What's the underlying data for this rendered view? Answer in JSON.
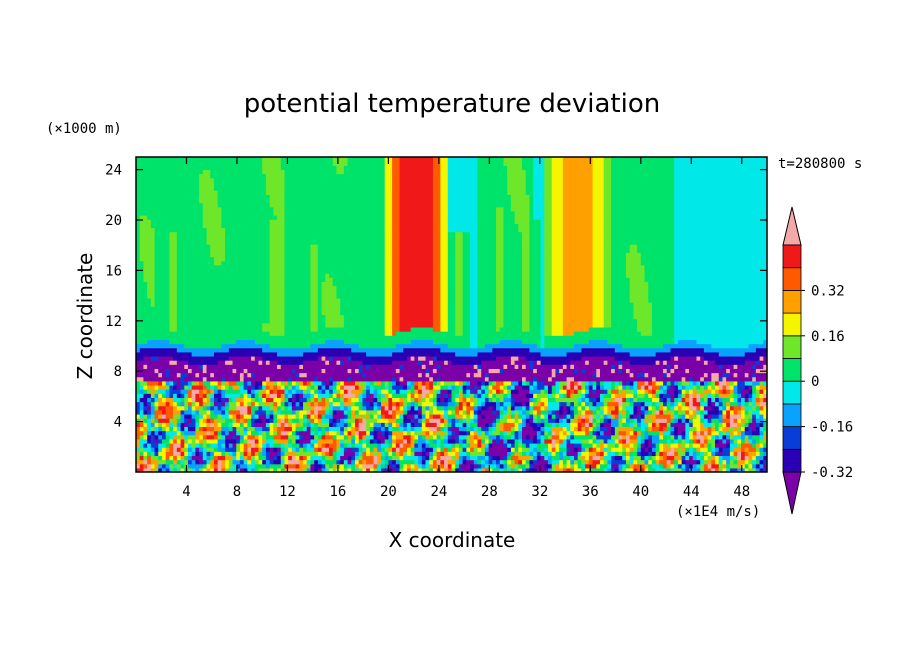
{
  "chart_data": {
    "type": "heatmap",
    "title": "potential temperature deviation",
    "xlabel": "X coordinate",
    "ylabel": "Z coordinate",
    "x_unit": "(×1E4 m/s)",
    "y_unit": "(×1000 m)",
    "time_label": "t=280800 s",
    "xlim": [
      0,
      50
    ],
    "ylim": [
      0,
      25
    ],
    "x_ticks": [
      "4",
      "8",
      "12",
      "16",
      "20",
      "24",
      "28",
      "32",
      "36",
      "40",
      "44",
      "48"
    ],
    "y_ticks": [
      "4",
      "8",
      "12",
      "16",
      "20",
      "24"
    ],
    "colorbar_labels": [
      "0.32",
      "0.16",
      "0",
      "-0.16",
      "-0.32"
    ],
    "colors": [
      "#7b00a8",
      "#2a00b4",
      "#0a3dd8",
      "#0aa2ff",
      "#00e8e8",
      "#00e36a",
      "#6ee62a",
      "#f5f500",
      "#ffa000",
      "#ff5a00",
      "#f01818",
      "#f4a8a8"
    ],
    "upper_columns": [
      {
        "x": 22.2,
        "level": 10,
        "top": 25,
        "core": 1.2
      },
      {
        "x": 35.0,
        "level": 8,
        "top": 25,
        "core": 1.3
      },
      {
        "x": 11.2,
        "level": 6,
        "top": 20,
        "core": 0.5
      },
      {
        "x": 28.8,
        "level": 6,
        "top": 21,
        "core": 0.4
      },
      {
        "x": 25.5,
        "level": 6,
        "top": 19,
        "core": 0.3
      },
      {
        "x": 31.0,
        "level": 6,
        "top": 20,
        "core": 0.3
      },
      {
        "x": 14.2,
        "level": 6,
        "top": 18,
        "core": 0.3
      },
      {
        "x": 3.0,
        "level": 6,
        "top": 19,
        "core": 0.3
      }
    ]
  }
}
